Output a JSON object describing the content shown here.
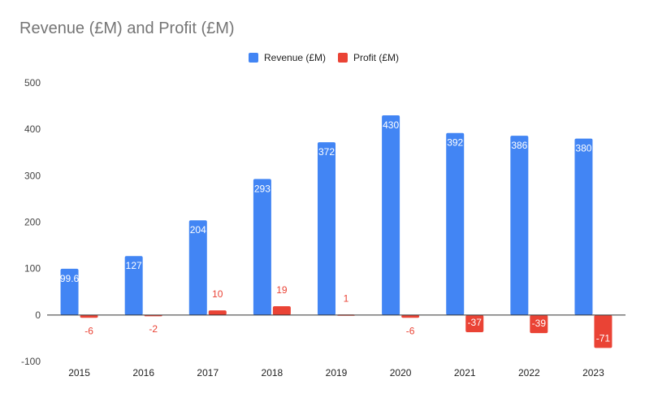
{
  "chart_data": {
    "type": "bar",
    "title": "Revenue (£M) and Profit (£M)",
    "categories": [
      "2015",
      "2016",
      "2017",
      "2018",
      "2019",
      "2020",
      "2021",
      "2022",
      "2023"
    ],
    "series": [
      {
        "name": "Revenue (£M)",
        "color": "#4285f4",
        "values": [
          99.6,
          127,
          204,
          293,
          372,
          430,
          392,
          386,
          380
        ]
      },
      {
        "name": "Profit (£M)",
        "color": "#ea4335",
        "values": [
          -6,
          -2,
          10,
          19,
          1,
          -6,
          -37,
          -39,
          -71
        ]
      }
    ],
    "ylim": [
      -100,
      500
    ],
    "yticks": [
      -100,
      0,
      100,
      200,
      300,
      400,
      500
    ],
    "xlabel": "",
    "ylabel": "",
    "grid": false,
    "legend": "top-center"
  }
}
